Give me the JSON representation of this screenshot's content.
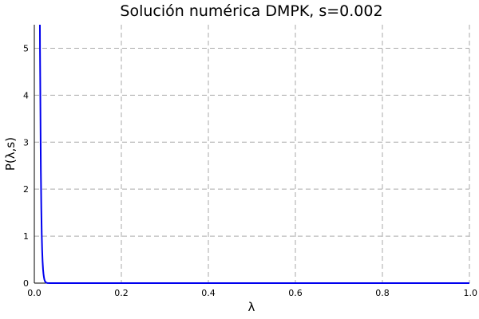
{
  "chart_data": {
    "type": "line",
    "title": "Solución numérica DMPK, s=0.002",
    "xlabel": "λ",
    "ylabel": "P(λ,s)",
    "xlim": [
      0,
      1
    ],
    "ylim": [
      0,
      5.5
    ],
    "xticks": [
      {
        "value": 0.0,
        "label": "0.0"
      },
      {
        "value": 0.2,
        "label": "0.2"
      },
      {
        "value": 0.4,
        "label": "0.4"
      },
      {
        "value": 0.6,
        "label": "0.6"
      },
      {
        "value": 0.8,
        "label": "0.8"
      },
      {
        "value": 1.0,
        "label": "1.0"
      }
    ],
    "yticks": [
      {
        "value": 0,
        "label": "0"
      },
      {
        "value": 1,
        "label": "1"
      },
      {
        "value": 2,
        "label": "2"
      },
      {
        "value": 3,
        "label": "3"
      },
      {
        "value": 4,
        "label": "4"
      },
      {
        "value": 5,
        "label": "5"
      }
    ],
    "grid": true,
    "legend": "none",
    "colors": {
      "series": "#0000ee",
      "grid": "#aaaaaa",
      "axis": "#000000"
    },
    "series": [
      {
        "x": [
          0.0128,
          0.013,
          0.0135,
          0.014,
          0.0145,
          0.015,
          0.016,
          0.017,
          0.018,
          0.019,
          0.02,
          0.021,
          0.022,
          0.023,
          0.024,
          0.025,
          0.027,
          0.03,
          0.035,
          0.04,
          0.05,
          0.1,
          0.2,
          0.3,
          0.4,
          0.5,
          0.6,
          0.7,
          0.8,
          0.9,
          1.0
        ],
        "y": [
          5.5,
          5.0,
          4.4,
          3.7,
          3.0,
          2.4,
          1.6,
          1.05,
          0.7,
          0.46,
          0.3,
          0.2,
          0.13,
          0.08,
          0.05,
          0.03,
          0.01,
          0.002,
          0.0,
          0.0,
          0.0,
          0.0,
          0.0,
          0.0,
          0.0,
          0.0,
          0.0,
          0.0,
          0.0,
          0.0,
          0.0
        ]
      }
    ]
  }
}
